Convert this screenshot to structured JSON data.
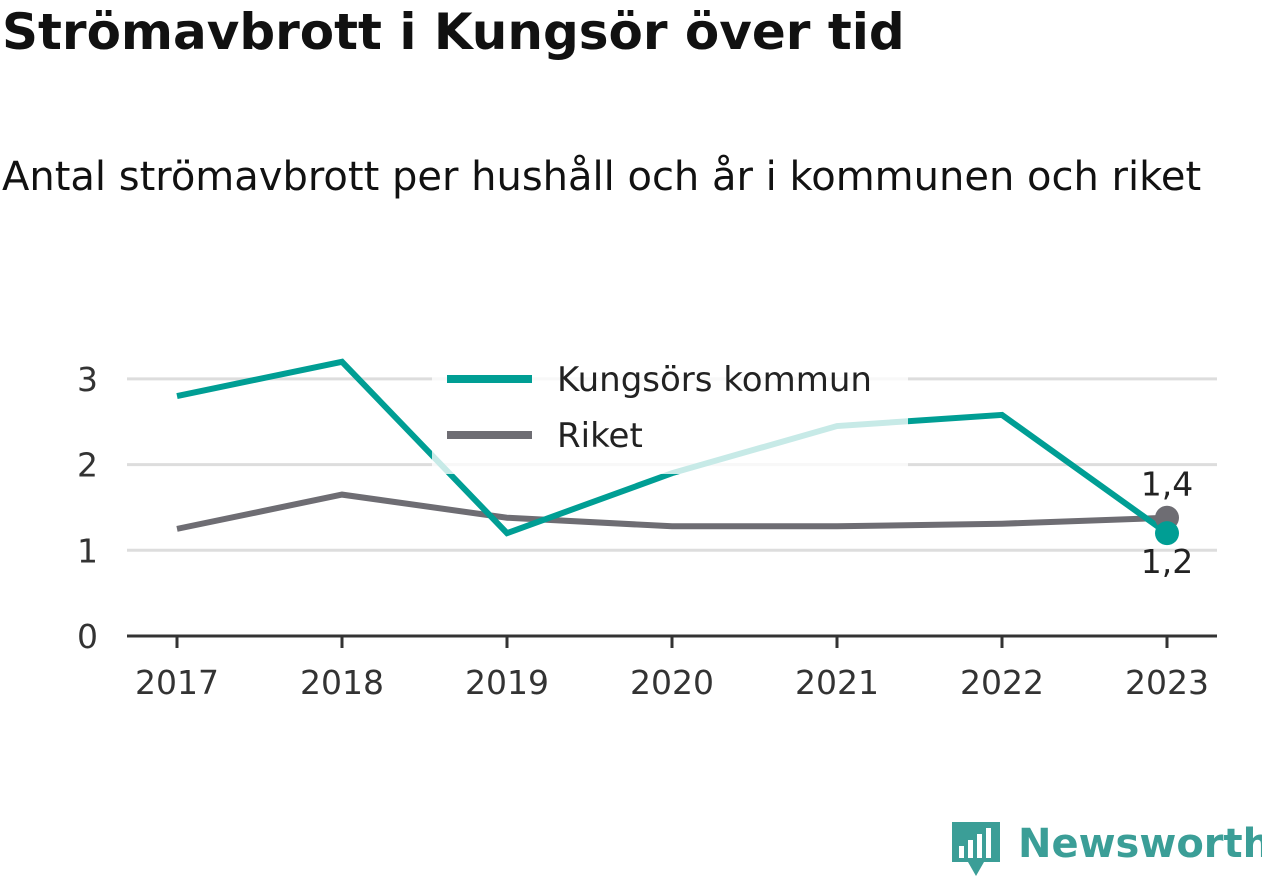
{
  "title": "Strömavbrott i Kungsör över tid",
  "subtitle": "Antal strömavbrott per hushåll och år i kommunen och riket",
  "brand": {
    "name": "Newsworthy",
    "icon": "newsworthy-logo-icon",
    "color": "#3b9e97"
  },
  "colors": {
    "kungsor": "#009e94",
    "riket": "#6e6d73",
    "grid": "#dddddd",
    "axis": "#333333"
  },
  "chart_data": {
    "type": "line",
    "x": [
      "2017",
      "2018",
      "2019",
      "2020",
      "2021",
      "2022",
      "2023"
    ],
    "ylim": [
      0,
      3.5
    ],
    "yticks": [
      "0",
      "1",
      "2",
      "3"
    ],
    "grid": true,
    "legend_position": "top-center",
    "series": [
      {
        "name": "Kungsörs kommun",
        "values": [
          2.8,
          3.2,
          1.2,
          1.9,
          2.45,
          2.58,
          1.2
        ],
        "end_label": "1,2"
      },
      {
        "name": "Riket",
        "values": [
          1.25,
          1.65,
          1.38,
          1.28,
          1.28,
          1.31,
          1.38
        ],
        "end_label": "1,4"
      }
    ]
  }
}
